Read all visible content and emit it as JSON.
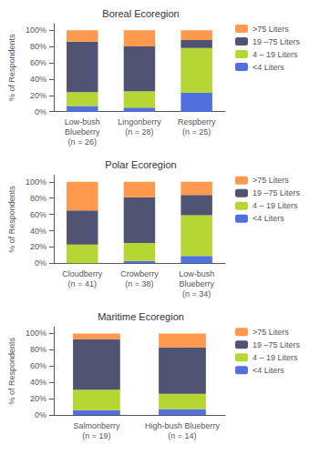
{
  "chart_data": [
    {
      "type": "bar",
      "title": "Boreal Ecoregion",
      "ylabel": "% of Respondents",
      "categories": [
        "Low-bush\nBlueberry\n(n = 26)",
        "Lingonberry\n(n = 28)",
        "Respberry\n(n = 25)"
      ],
      "series": [
        {
          "name": "<4 Liters",
          "values": [
            7,
            5,
            23
          ]
        },
        {
          "name": "4 – 19 Liters",
          "values": [
            17,
            20,
            55
          ]
        },
        {
          "name": "19 –75 Liters",
          "values": [
            62,
            55,
            10
          ]
        },
        {
          "name": ">75 Liters",
          "values": [
            14,
            20,
            12
          ]
        }
      ],
      "stacked": true,
      "ylim": [
        0,
        108
      ],
      "yticks": [
        {
          "value": 0,
          "label": "0%"
        },
        {
          "value": 20,
          "label": "20%"
        },
        {
          "value": 40,
          "label": "40%"
        },
        {
          "value": 60,
          "label": "60%"
        },
        {
          "value": 80,
          "label": "80%"
        },
        {
          "value": 100,
          "label": "100%"
        }
      ],
      "grid": false,
      "legend": "right"
    },
    {
      "type": "bar",
      "title": "Polar Ecoregion",
      "ylabel": "% of Respondents",
      "categories": [
        "Cloudberry\n(n = 41)",
        "Crowberry\n(n = 38)",
        "Low-bush\nBlueberry\n(n = 34)"
      ],
      "series": [
        {
          "name": "<4 Liters",
          "values": [
            0,
            3,
            9
          ]
        },
        {
          "name": "4 – 19 Liters",
          "values": [
            23,
            22,
            50
          ]
        },
        {
          "name": "19 –75 Liters",
          "values": [
            42,
            56,
            25
          ]
        },
        {
          "name": ">75 Liters",
          "values": [
            35,
            19,
            16
          ]
        }
      ],
      "stacked": true,
      "ylim": [
        0,
        108
      ],
      "yticks": [
        {
          "value": 0,
          "label": "0%"
        },
        {
          "value": 20,
          "label": "20%"
        },
        {
          "value": 40,
          "label": "40%"
        },
        {
          "value": 60,
          "label": "60%"
        },
        {
          "value": 80,
          "label": "80%"
        },
        {
          "value": 100,
          "label": "100%"
        }
      ],
      "grid": false,
      "legend": "right"
    },
    {
      "type": "bar",
      "title": "Maritime Ecoregion",
      "ylabel": "% of Respondents",
      "categories": [
        "Salmonberry\n(n = 19)",
        "High-bush Blueberry\n(n = 14)"
      ],
      "series": [
        {
          "name": "<4 Liters",
          "values": [
            6,
            7
          ]
        },
        {
          "name": "4 – 19 Liters",
          "values": [
            25,
            19
          ]
        },
        {
          "name": "19 –75 Liters",
          "values": [
            62,
            57
          ]
        },
        {
          "name": ">75 Liters",
          "values": [
            7,
            17
          ]
        }
      ],
      "stacked": true,
      "ylim": [
        0,
        108
      ],
      "yticks": [
        {
          "value": 0,
          "label": "0%"
        },
        {
          "value": 20,
          "label": "20%"
        },
        {
          "value": 40,
          "label": "40%"
        },
        {
          "value": 60,
          "label": "60%"
        },
        {
          "value": 80,
          "label": "80%"
        },
        {
          "value": 100,
          "label": "100%"
        }
      ],
      "grid": false,
      "legend": "right"
    }
  ]
}
